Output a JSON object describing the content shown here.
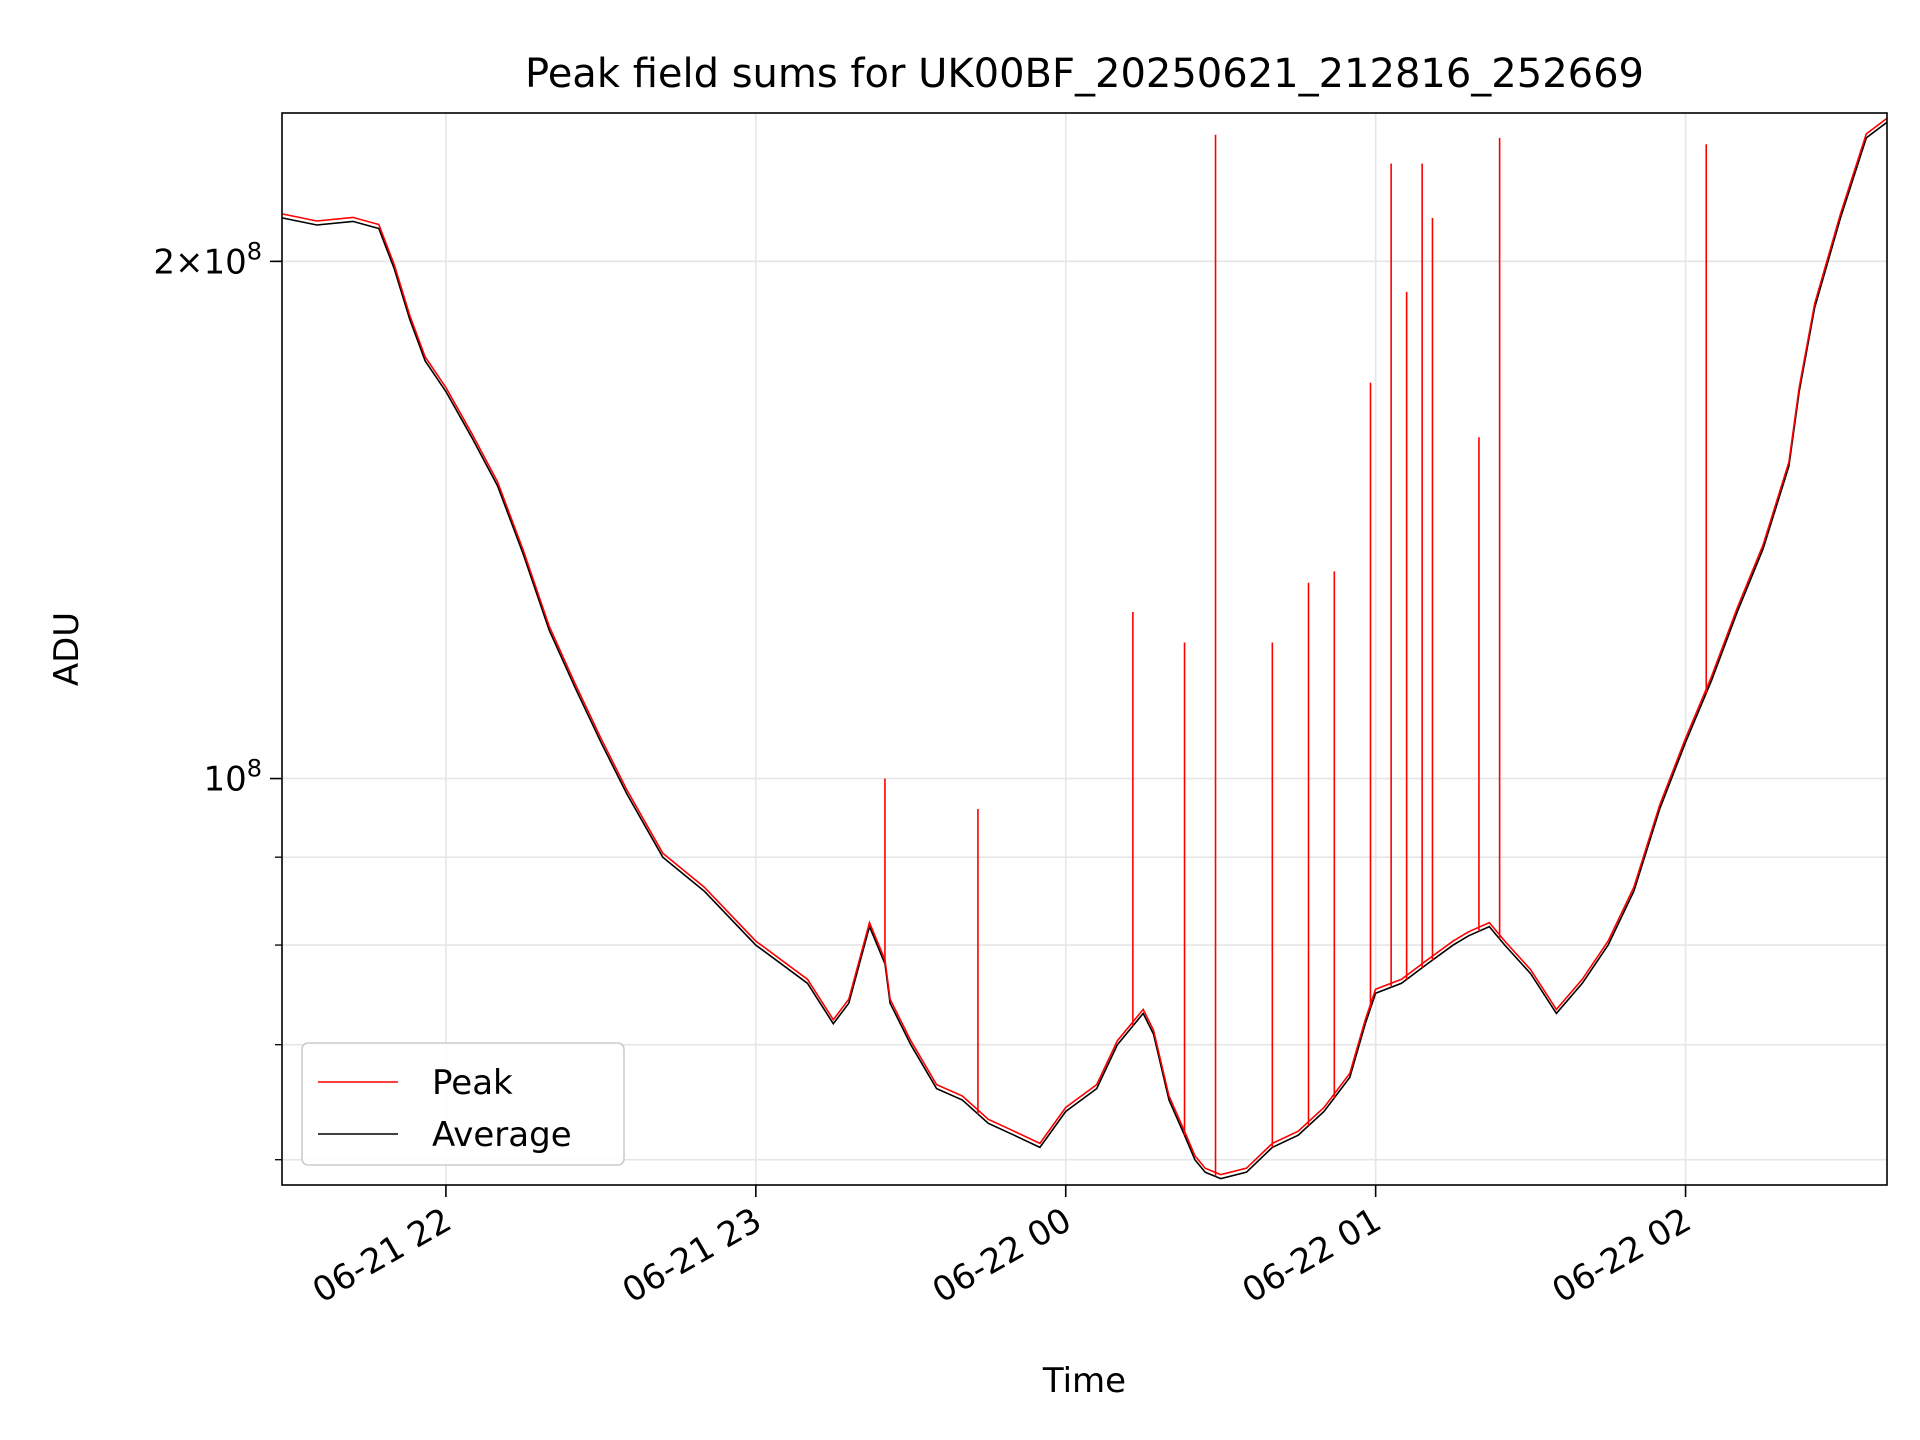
{
  "chart_data": {
    "type": "line",
    "title": "Peak field sums for UK00BF_20250621_212816_252669",
    "xlabel": "Time",
    "ylabel": "ADU",
    "x_is_time": true,
    "xlim": [
      "2025-06-21T21:28:16",
      "2025-06-22T02:39:00"
    ],
    "x_ticks": [
      "2025-06-21T22:00:00",
      "2025-06-21T23:00:00",
      "2025-06-22T00:00:00",
      "2025-06-22T01:00:00",
      "2025-06-22T02:00:00"
    ],
    "x_tick_labels": [
      "06-21 22",
      "06-21 23",
      "06-22 00",
      "06-22 01",
      "06-22 02"
    ],
    "yscale": "log",
    "ylim": [
      58000000,
      244000000
    ],
    "y_major_ticks": [
      100000000,
      200000000
    ],
    "y_major_tick_labels": [
      "10^8",
      "2×10^8"
    ],
    "y_minor_ticks": [
      60000000,
      70000000,
      80000000,
      90000000,
      200000000
    ],
    "grid": true,
    "legend": {
      "location": "lower-left",
      "entries": [
        "Peak",
        "Average"
      ]
    },
    "series": [
      {
        "name": "Average",
        "color": "#000000",
        "x": [
          "2025-06-21T21:28:16",
          "2025-06-21T21:35:00",
          "2025-06-21T21:42:00",
          "2025-06-21T21:47:00",
          "2025-06-21T21:50:00",
          "2025-06-21T21:53:00",
          "2025-06-21T21:56:00",
          "2025-06-21T22:00:00",
          "2025-06-21T22:05:00",
          "2025-06-21T22:10:00",
          "2025-06-21T22:15:00",
          "2025-06-21T22:20:00",
          "2025-06-21T22:25:00",
          "2025-06-21T22:30:00",
          "2025-06-21T22:35:00",
          "2025-06-21T22:42:00",
          "2025-06-21T22:50:00",
          "2025-06-21T23:00:00",
          "2025-06-21T23:10:00",
          "2025-06-21T23:15:00",
          "2025-06-21T23:18:00",
          "2025-06-21T23:22:00",
          "2025-06-21T23:25:00",
          "2025-06-21T23:26:00",
          "2025-06-21T23:30:00",
          "2025-06-21T23:35:00",
          "2025-06-21T23:40:00",
          "2025-06-21T23:45:00",
          "2025-06-21T23:50:00",
          "2025-06-21T23:55:00",
          "2025-06-22T00:00:00",
          "2025-06-22T00:06:00",
          "2025-06-22T00:10:00",
          "2025-06-22T00:15:00",
          "2025-06-22T00:17:00",
          "2025-06-22T00:20:00",
          "2025-06-22T00:23:00",
          "2025-06-22T00:25:00",
          "2025-06-22T00:27:00",
          "2025-06-22T00:30:00",
          "2025-06-22T00:35:00",
          "2025-06-22T00:40:00",
          "2025-06-22T00:45:00",
          "2025-06-22T00:50:00",
          "2025-06-22T00:55:00",
          "2025-06-22T00:58:00",
          "2025-06-22T01:00:00",
          "2025-06-22T01:05:00",
          "2025-06-22T01:10:00",
          "2025-06-22T01:15:00",
          "2025-06-22T01:18:00",
          "2025-06-22T01:22:00",
          "2025-06-22T01:25:00",
          "2025-06-22T01:30:00",
          "2025-06-22T01:35:00",
          "2025-06-22T01:40:00",
          "2025-06-22T01:45:00",
          "2025-06-22T01:50:00",
          "2025-06-22T01:55:00",
          "2025-06-22T02:00:00",
          "2025-06-22T02:05:00",
          "2025-06-22T02:10:00",
          "2025-06-22T02:15:00",
          "2025-06-22T02:20:00",
          "2025-06-22T02:22:00",
          "2025-06-22T02:25:00",
          "2025-06-22T02:30:00",
          "2025-06-22T02:35:00",
          "2025-06-22T02:39:00"
        ],
        "values": [
          212000000,
          210000000,
          211000000,
          209000000,
          198000000,
          185000000,
          175000000,
          168000000,
          158000000,
          148000000,
          135000000,
          122000000,
          113000000,
          105000000,
          98000000,
          90000000,
          86000000,
          80000000,
          76000000,
          72000000,
          74000000,
          82000000,
          78000000,
          74000000,
          70000000,
          66000000,
          65000000,
          63000000,
          62000000,
          61000000,
          64000000,
          66000000,
          70000000,
          73000000,
          71000000,
          65000000,
          62000000,
          60000000,
          59000000,
          58500000,
          59000000,
          61000000,
          62000000,
          64000000,
          67000000,
          72000000,
          75000000,
          76000000,
          78000000,
          80000000,
          81000000,
          82000000,
          80000000,
          77000000,
          73000000,
          76000000,
          80000000,
          86000000,
          96000000,
          105000000,
          114000000,
          125000000,
          136000000,
          152000000,
          168000000,
          188000000,
          212000000,
          236000000,
          241000000
        ]
      },
      {
        "name": "Peak",
        "color": "#ff0000",
        "spikes": [
          {
            "x": "2025-06-21T23:25:00",
            "y": 100000000
          },
          {
            "x": "2025-06-21T23:43:00",
            "y": 96000000
          },
          {
            "x": "2025-06-22T00:13:00",
            "y": 125000000
          },
          {
            "x": "2025-06-22T00:23:00",
            "y": 120000000
          },
          {
            "x": "2025-06-22T00:29:00",
            "y": 237000000
          },
          {
            "x": "2025-06-22T00:40:00",
            "y": 120000000
          },
          {
            "x": "2025-06-22T00:47:00",
            "y": 130000000
          },
          {
            "x": "2025-06-22T00:52:00",
            "y": 132000000
          },
          {
            "x": "2025-06-22T00:59:00",
            "y": 170000000
          },
          {
            "x": "2025-06-22T01:03:00",
            "y": 228000000
          },
          {
            "x": "2025-06-22T01:06:00",
            "y": 192000000
          },
          {
            "x": "2025-06-22T01:09:00",
            "y": 228000000
          },
          {
            "x": "2025-06-22T01:11:00",
            "y": 212000000
          },
          {
            "x": "2025-06-22T01:20:00",
            "y": 158000000
          },
          {
            "x": "2025-06-22T01:24:00",
            "y": 236000000
          },
          {
            "x": "2025-06-22T02:04:00",
            "y": 234000000
          }
        ]
      }
    ]
  }
}
